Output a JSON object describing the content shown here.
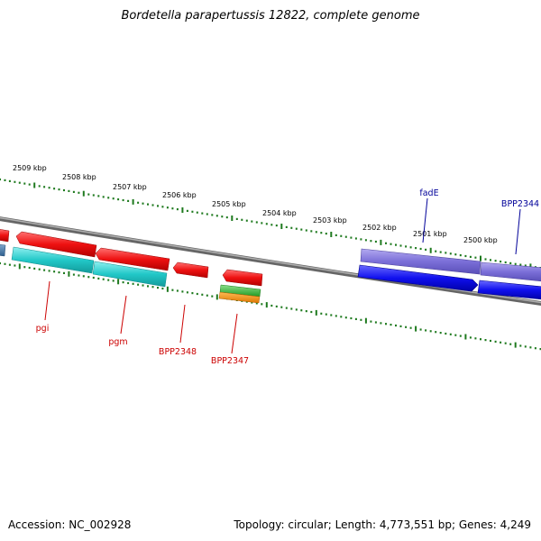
{
  "header": {
    "title": "Bordetella parapertussis 12822, complete genome"
  },
  "footer": {
    "accession": "Accession: NC_002928",
    "summary": "Topology: circular; Length: 4,773,551 bp; Genes: 4,249"
  },
  "ruler": {
    "labels": [
      "2509 kbp",
      "2508 kbp",
      "2507 kbp",
      "2506 kbp",
      "2505 kbp",
      "2504 kbp",
      "2503 kbp",
      "2502 kbp",
      "2501 kbp",
      "2500 kbp"
    ]
  },
  "genes": {
    "fadE": "fadE",
    "BPP2344": "BPP2344",
    "pgi": "pgi",
    "pgm": "pgm",
    "BPP2348": "BPP2348",
    "BPP2347": "BPP2347"
  },
  "colors": {
    "background": "#ffffff",
    "backbone": "#888888",
    "tick": "#1f7a1f",
    "cds_red": "#ee1111",
    "cds_cyan": "#22c8c8",
    "cds_blue": "#1010ee",
    "cds_purple": "#7b6fd8",
    "rna_green": "#33bb33",
    "rna_orange": "#ee8811",
    "label_red": "#cc0000",
    "label_blue": "#000099"
  }
}
